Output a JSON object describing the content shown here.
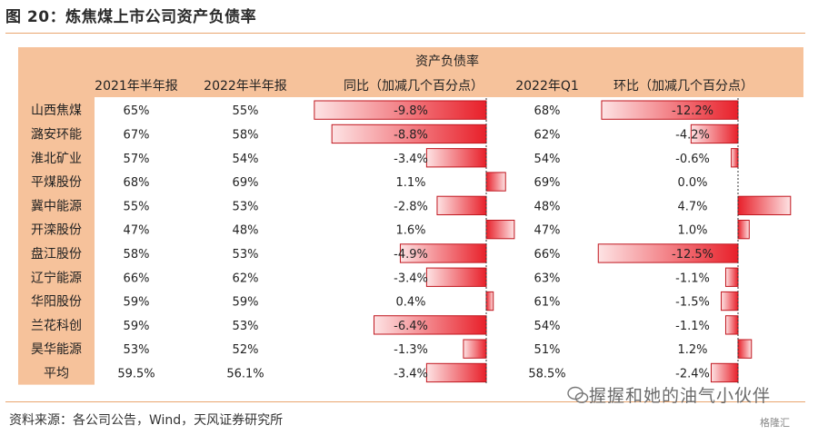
{
  "title": "图 20：炼焦煤上市公司资产负债率",
  "source": "资料来源：各公司公告，Wind，天风证券研究所",
  "watermark": "握握和她的油气小伙伴",
  "logo": "格隆汇",
  "colors": {
    "header_bg": "#f6c29b",
    "title_rule": "#e9a56f",
    "bar_fill": "#e8202a",
    "bar_border": "#c0161e",
    "axis_dash": "#333333"
  },
  "chart_data": {
    "type": "table",
    "group_header": "资产负债率",
    "columns": [
      "2021年半年报",
      "2022年半年报",
      "同比（加减几个百分点）",
      "2022年Q1",
      "环比（加减几个百分点）"
    ],
    "rows": [
      {
        "name": "山西焦煤",
        "h1_2021": "65%",
        "h1_2022": "55%",
        "yoy": -9.8,
        "yoy_label": "-9.8%",
        "q1_2022": "68%",
        "qoq": -12.2,
        "qoq_label": "-12.2%"
      },
      {
        "name": "潞安环能",
        "h1_2021": "67%",
        "h1_2022": "58%",
        "yoy": -8.8,
        "yoy_label": "-8.8%",
        "q1_2022": "62%",
        "qoq": -4.2,
        "qoq_label": "-4.2%"
      },
      {
        "name": "淮北矿业",
        "h1_2021": "57%",
        "h1_2022": "54%",
        "yoy": -3.4,
        "yoy_label": "-3.4%",
        "q1_2022": "54%",
        "qoq": -0.6,
        "qoq_label": "-0.6%"
      },
      {
        "name": "平煤股份",
        "h1_2021": "68%",
        "h1_2022": "69%",
        "yoy": 1.1,
        "yoy_label": "1.1%",
        "q1_2022": "69%",
        "qoq": 0.0,
        "qoq_label": "0.0%"
      },
      {
        "name": "冀中能源",
        "h1_2021": "55%",
        "h1_2022": "53%",
        "yoy": -2.8,
        "yoy_label": "-2.8%",
        "q1_2022": "48%",
        "qoq": 4.7,
        "qoq_label": "4.7%"
      },
      {
        "name": "开滦股份",
        "h1_2021": "47%",
        "h1_2022": "48%",
        "yoy": 1.6,
        "yoy_label": "1.6%",
        "q1_2022": "47%",
        "qoq": 1.0,
        "qoq_label": "1.0%"
      },
      {
        "name": "盘江股份",
        "h1_2021": "58%",
        "h1_2022": "53%",
        "yoy": -4.9,
        "yoy_label": "-4.9%",
        "q1_2022": "66%",
        "qoq": -12.5,
        "qoq_label": "-12.5%"
      },
      {
        "name": "辽宁能源",
        "h1_2021": "66%",
        "h1_2022": "62%",
        "yoy": -3.4,
        "yoy_label": "-3.4%",
        "q1_2022": "63%",
        "qoq": -1.1,
        "qoq_label": "-1.1%"
      },
      {
        "name": "华阳股份",
        "h1_2021": "59%",
        "h1_2022": "59%",
        "yoy": 0.4,
        "yoy_label": "0.4%",
        "q1_2022": "61%",
        "qoq": -1.5,
        "qoq_label": "-1.5%"
      },
      {
        "name": "兰花科创",
        "h1_2021": "59%",
        "h1_2022": "53%",
        "yoy": -6.4,
        "yoy_label": "-6.4%",
        "q1_2022": "54%",
        "qoq": -1.1,
        "qoq_label": "-1.1%"
      },
      {
        "name": "昊华能源",
        "h1_2021": "53%",
        "h1_2022": "52%",
        "yoy": -1.3,
        "yoy_label": "-1.3%",
        "q1_2022": "51%",
        "qoq": 1.2,
        "qoq_label": "1.2%"
      },
      {
        "name": "平均",
        "h1_2021": "59.5%",
        "h1_2022": "56.1%",
        "yoy": -3.4,
        "yoy_label": "-3.4%",
        "q1_2022": "58.5%",
        "qoq": -2.4,
        "qoq_label": "-2.4%"
      }
    ]
  }
}
